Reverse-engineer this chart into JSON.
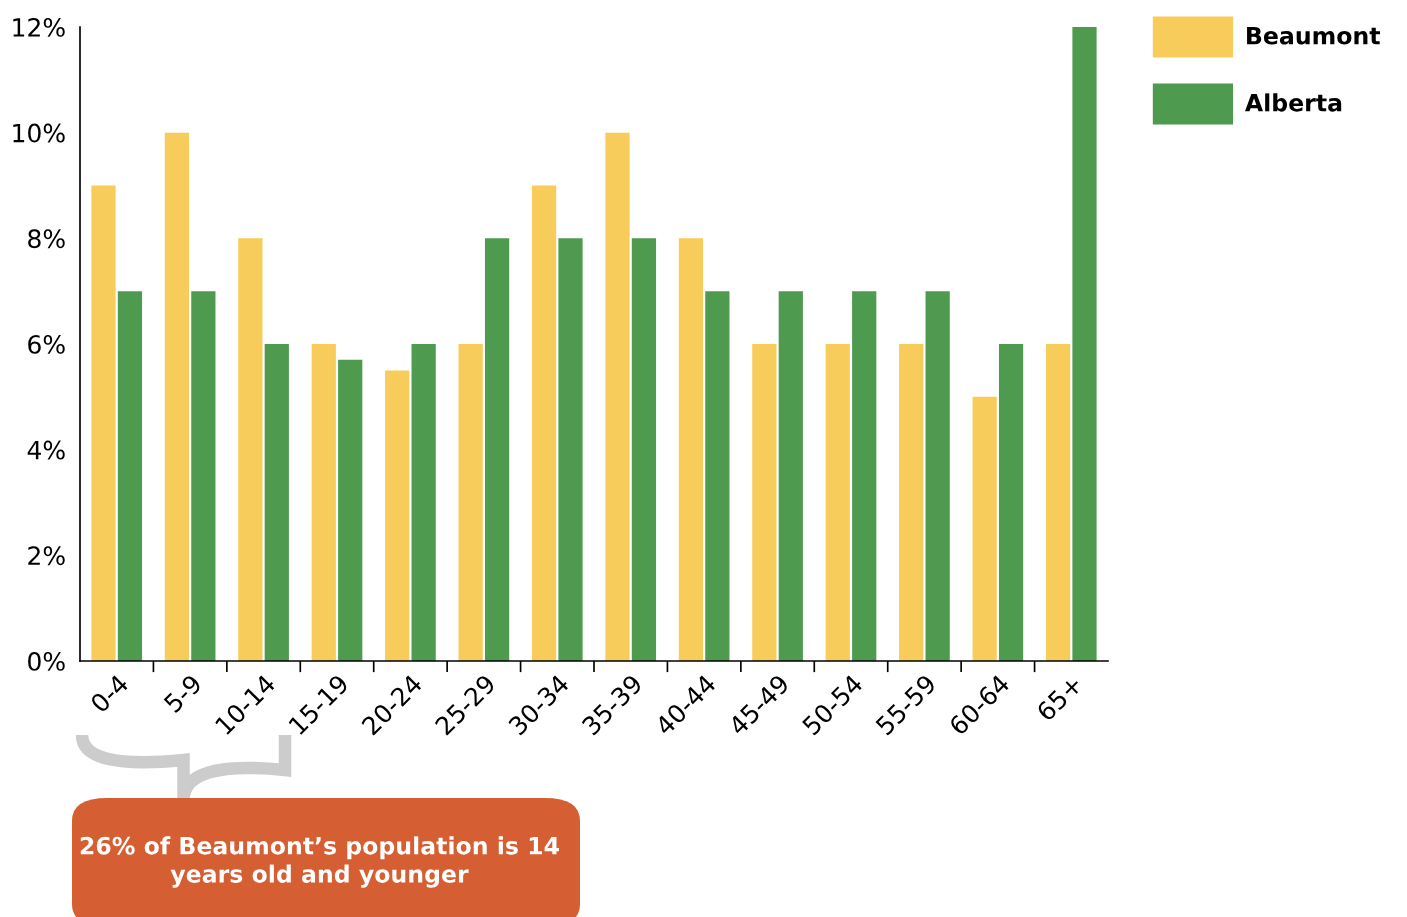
{
  "chart_data": {
    "type": "bar",
    "categories": [
      "0-4",
      "5-9",
      "10-14",
      "15-19",
      "20-24",
      "25-29",
      "30-34",
      "35-39",
      "40-44",
      "45-49",
      "50-54",
      "55-59",
      "60-64",
      "65+"
    ],
    "series": [
      {
        "name": "Beaumont",
        "color": "#f7cc5a",
        "values": [
          9,
          10,
          8,
          6,
          5.5,
          6,
          9,
          10,
          8,
          6,
          6,
          6,
          5,
          6
        ]
      },
      {
        "name": "Alberta",
        "color": "#4e9a4f",
        "values": [
          7,
          7,
          6,
          5.7,
          6,
          8,
          8,
          8,
          7,
          7,
          7,
          7,
          6,
          12
        ]
      }
    ],
    "ylim": [
      0,
      12
    ],
    "yticks": [
      {
        "value": 0,
        "label": "0%"
      },
      {
        "value": 2,
        "label": "2%"
      },
      {
        "value": 4,
        "label": "4%"
      },
      {
        "value": 6,
        "label": "6%"
      },
      {
        "value": 8,
        "label": "8%"
      },
      {
        "value": 10,
        "label": "10%"
      },
      {
        "value": 12,
        "label": "12%"
      }
    ],
    "legend": "top right",
    "grid": false,
    "annotations": [
      "26% of Beaumont’s population is 14 years old and younger"
    ]
  }
}
